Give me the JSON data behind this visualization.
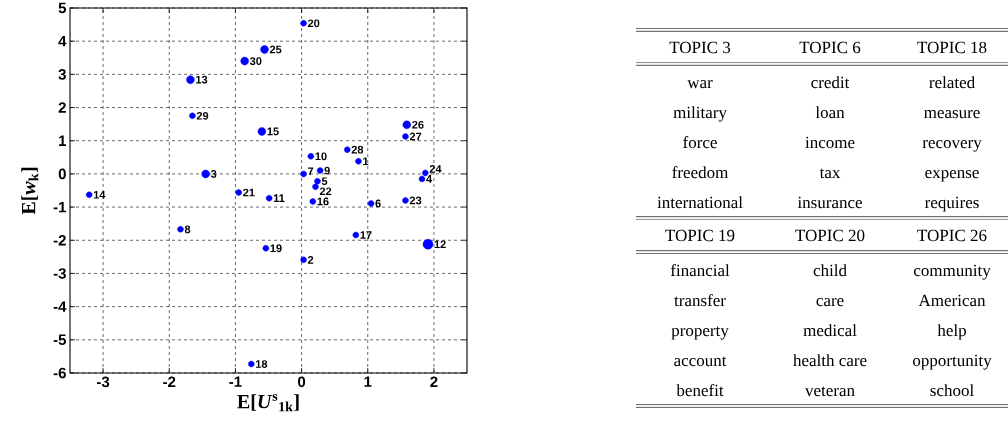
{
  "chart_data": [
    {
      "type": "bubble",
      "xlabel": "E[*U*$^{s}$$_{1k}$]",
      "ylabel": "E[*w*$_{k}$]",
      "x": [
        0.86,
        0.03,
        -1.45,
        1.82,
        0.24,
        1.05,
        0.03,
        -1.83,
        0.28,
        0.14,
        -0.49,
        1.91,
        -1.68,
        -3.21,
        -0.6,
        0.17,
        0.82,
        -0.76,
        -0.54,
        0.03,
        -0.95,
        0.21,
        1.57,
        1.87,
        -0.56,
        1.59,
        1.57,
        0.69,
        -1.65,
        -0.86
      ],
      "values": [
        0.38,
        -2.59,
        0.0,
        -0.15,
        -0.22,
        -0.89,
        0.0,
        -1.67,
        0.1,
        0.53,
        -0.73,
        -2.12,
        2.84,
        -0.63,
        1.28,
        -0.83,
        -1.84,
        -5.73,
        -2.24,
        4.54,
        -0.56,
        -0.39,
        -0.8,
        0.03,
        3.75,
        1.48,
        1.13,
        0.73,
        1.75,
        3.4
      ],
      "sizes": [
        0.36,
        0.36,
        0.64,
        0.36,
        0.36,
        0.36,
        0.36,
        0.36,
        0.36,
        0.36,
        0.36,
        1,
        0.64,
        0.36,
        0.64,
        0.36,
        0.36,
        0.36,
        0.36,
        0.36,
        0.36,
        0.36,
        0.36,
        0.36,
        0.64,
        0.64,
        0.36,
        0.36,
        0.36,
        0.64
      ],
      "color": "#0000ff",
      "marker": "circle",
      "xlim": [
        -3.5,
        2.5
      ],
      "xticks": [
        -3,
        -2,
        -1,
        0,
        1,
        2
      ],
      "ylim": [
        -6,
        5
      ],
      "yticks": [
        -6,
        -5,
        -4,
        -3,
        -2,
        -1,
        0,
        1,
        2,
        3,
        4,
        5
      ],
      "grid": true,
      "annotations": [
        {
          "text": "1",
          "x": 0.86,
          "y": 0.38
        },
        {
          "text": "2",
          "x": 0.03,
          "y": -2.59
        },
        {
          "text": "3",
          "x": -1.45,
          "y": 0.0
        },
        {
          "text": "4",
          "x": 1.82,
          "y": -0.15
        },
        {
          "text": "5",
          "x": 0.24,
          "y": -0.22
        },
        {
          "text": "6",
          "x": 1.05,
          "y": -0.89
        },
        {
          "text": "7",
          "x": 0.03,
          "y": 0.0
        },
        {
          "text": "8",
          "x": -1.83,
          "y": -1.67
        },
        {
          "text": "9",
          "x": 0.28,
          "y": 0.1
        },
        {
          "text": "10",
          "x": 0.14,
          "y": 0.53
        },
        {
          "text": "11",
          "x": -0.49,
          "y": -0.73
        },
        {
          "text": "12",
          "x": 1.91,
          "y": -2.12
        },
        {
          "text": "13",
          "x": -1.68,
          "y": 2.84
        },
        {
          "text": "14",
          "x": -3.21,
          "y": -0.63
        },
        {
          "text": "15",
          "x": -0.6,
          "y": 1.28
        },
        {
          "text": "16",
          "x": 0.17,
          "y": -0.83
        },
        {
          "text": "17",
          "x": 0.82,
          "y": -1.84
        },
        {
          "text": "18",
          "x": -0.76,
          "y": -5.73
        },
        {
          "text": "19",
          "x": -0.54,
          "y": -2.24
        },
        {
          "text": "20",
          "x": 0.03,
          "y": 4.54
        },
        {
          "text": "21",
          "x": -0.95,
          "y": -0.56
        },
        {
          "text": "22",
          "x": 0.21,
          "y": -0.39
        },
        {
          "text": "23",
          "x": 1.57,
          "y": -0.8
        },
        {
          "text": "24",
          "x": 1.87,
          "y": 0.03
        },
        {
          "text": "25",
          "x": -0.56,
          "y": 3.75
        },
        {
          "text": "26",
          "x": 1.59,
          "y": 1.48
        },
        {
          "text": "27",
          "x": 1.57,
          "y": 1.13
        },
        {
          "text": "28",
          "x": 0.69,
          "y": 0.73
        },
        {
          "text": "29",
          "x": -1.65,
          "y": 1.75
        },
        {
          "text": "30",
          "x": -0.86,
          "y": 3.4
        }
      ]
    },
    {
      "type": "other",
      "annotations": [
        "TOPIC 3",
        "TOPIC 6",
        "TOPIC 18",
        "war",
        "credit",
        "related",
        "military",
        "loan",
        "measure",
        "force",
        "income",
        "recovery",
        "freedom",
        "tax",
        "expense",
        "international",
        "insurance",
        "requires",
        "TOPIC 19",
        "TOPIC 20",
        "TOPIC 26",
        "financial",
        "child",
        "community",
        "transfer",
        "care",
        "American",
        "property",
        "medical",
        "help",
        "account",
        "health care",
        "opportunity",
        "benefit",
        "veteran",
        "school"
      ]
    }
  ]
}
